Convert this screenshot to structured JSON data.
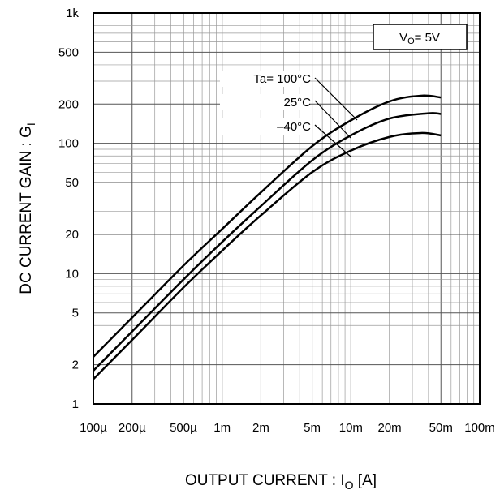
{
  "chart_data": {
    "type": "line",
    "title": "",
    "xlabel": {
      "main": "OUTPUT CURRENT : I",
      "sub": "O",
      "tail": " [A]"
    },
    "ylabel": {
      "main": "DC CURRENT GAIN : G",
      "sub": "I"
    },
    "x_scale": "log",
    "y_scale": "log",
    "xlim": [
      0.0001,
      0.1
    ],
    "ylim": [
      1,
      1000
    ],
    "grid": true,
    "x_ticks": [
      {
        "value": 0.0001,
        "label": "100µ"
      },
      {
        "value": 0.0002,
        "label": "200µ"
      },
      {
        "value": 0.0005,
        "label": "500µ"
      },
      {
        "value": 0.001,
        "label": "1m"
      },
      {
        "value": 0.002,
        "label": "2m"
      },
      {
        "value": 0.005,
        "label": "5m"
      },
      {
        "value": 0.01,
        "label": "10m"
      },
      {
        "value": 0.02,
        "label": "20m"
      },
      {
        "value": 0.05,
        "label": "50m"
      },
      {
        "value": 0.1,
        "label": "100m"
      }
    ],
    "y_ticks": [
      {
        "value": 1,
        "label": "1"
      },
      {
        "value": 2,
        "label": "2"
      },
      {
        "value": 5,
        "label": "5"
      },
      {
        "value": 10,
        "label": "10"
      },
      {
        "value": 20,
        "label": "20"
      },
      {
        "value": 50,
        "label": "50"
      },
      {
        "value": 100,
        "label": "100"
      },
      {
        "value": 200,
        "label": "200"
      },
      {
        "value": 500,
        "label": "500"
      },
      {
        "value": 1000,
        "label": "1k"
      }
    ],
    "condition": {
      "main": "V",
      "sub": "O",
      "tail": "= 5V"
    },
    "series": [
      {
        "name": "Ta= 100°C",
        "x": [
          0.0001,
          0.0002,
          0.0005,
          0.001,
          0.002,
          0.005,
          0.01,
          0.02,
          0.035,
          0.05
        ],
        "y": [
          2.3,
          4.6,
          11.5,
          22,
          42,
          95,
          150,
          210,
          232,
          225
        ]
      },
      {
        "name": "25°C",
        "x": [
          0.0001,
          0.0002,
          0.0005,
          0.001,
          0.002,
          0.005,
          0.01,
          0.02,
          0.04,
          0.05
        ],
        "y": [
          1.8,
          3.6,
          9,
          17.5,
          33,
          74,
          115,
          155,
          170,
          168
        ]
      },
      {
        "name": "–40°C",
        "x": [
          0.0001,
          0.0002,
          0.0005,
          0.001,
          0.002,
          0.005,
          0.01,
          0.02,
          0.035,
          0.05
        ],
        "y": [
          1.55,
          3.1,
          7.8,
          15,
          28,
          60,
          88,
          112,
          120,
          115
        ]
      }
    ]
  }
}
